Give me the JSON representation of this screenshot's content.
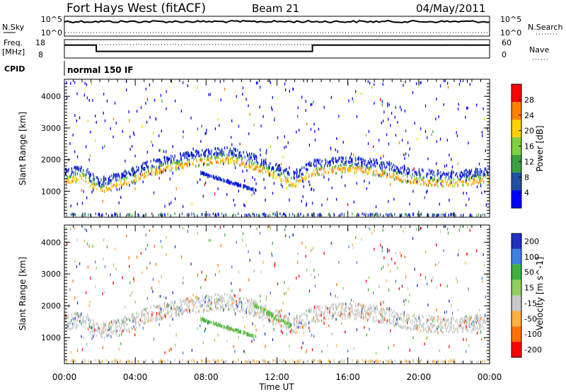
{
  "header": {
    "station": "Fort Hays West (fitACF)",
    "beam": "Beam 21",
    "date": "04/May/2011"
  },
  "strips": {
    "nsky": {
      "label": "N.Sky",
      "tick_top": "10^5",
      "tick_bottom": "10^0",
      "right_label": "N.Search",
      "right_tick_top": "10^5",
      "right_tick_bottom": "10^0"
    },
    "freq": {
      "label_line1": "Freq.",
      "label_line2": "[MHz]",
      "tick_top": "18",
      "tick_bottom": "8",
      "right_label": "Nave",
      "right_tick_top": "60",
      "right_tick_bottom": "0",
      "freq_segments_mhz": [
        {
          "from_h": 0.0,
          "to_h": 1.8,
          "value": 15.0
        },
        {
          "from_h": 1.8,
          "to_h": 14.0,
          "value": 11.6
        },
        {
          "from_h": 14.0,
          "to_h": 24.0,
          "value": 15.0
        }
      ]
    },
    "cpid": {
      "label": "CPID",
      "program": "normal 150 IF"
    }
  },
  "chart_data": [
    {
      "type": "heatmap",
      "name": "power",
      "ylabel": "Slant Range [km]",
      "yticks": [
        "1000",
        "2000",
        "3000",
        "4000"
      ],
      "ylim_km": [
        180,
        4540
      ],
      "colorbar_label": "Power [dB]",
      "colorbar_ticks": [
        "4",
        "8",
        "12",
        "16",
        "20",
        "24",
        "28"
      ],
      "colorbar_colors": [
        "#0000ff",
        "#2050a0",
        "#3aa040",
        "#7fd040",
        "#ffd000",
        "#ff8000",
        "#ff0000"
      ],
      "band_km": [
        [
          0,
          1450
        ],
        [
          1,
          1580
        ],
        [
          2,
          1150
        ],
        [
          3,
          1350
        ],
        [
          4,
          1550
        ],
        [
          5,
          1750
        ],
        [
          6,
          1900
        ],
        [
          7,
          2000
        ],
        [
          8,
          2080
        ],
        [
          9,
          2150
        ],
        [
          10,
          2050
        ],
        [
          11,
          1850
        ],
        [
          12,
          1600
        ],
        [
          13,
          1350
        ],
        [
          14,
          1750
        ],
        [
          15,
          1800
        ],
        [
          16,
          1850
        ],
        [
          17,
          1800
        ],
        [
          18,
          1700
        ],
        [
          19,
          1550
        ],
        [
          20,
          1450
        ],
        [
          21,
          1400
        ],
        [
          22,
          1400
        ],
        [
          23,
          1450
        ],
        [
          24,
          1500
        ]
      ]
    },
    {
      "type": "heatmap",
      "name": "velocity",
      "ylabel": "Slant Range [km]",
      "yticks": [
        "1000",
        "2000",
        "3000",
        "4000"
      ],
      "ylim_km": [
        180,
        4540
      ],
      "colorbar_label": "Velocity [m s^-1]",
      "colorbar_ticks": [
        "200",
        "100",
        "50",
        "15",
        "-15",
        "-50",
        "-100",
        "-200"
      ],
      "colorbar_colors": [
        "#2030c0",
        "#4080e0",
        "#40b040",
        "#90d060",
        "#c8c8c8",
        "#ffb040",
        "#ff7000",
        "#ff0000"
      ],
      "xlabel": "Time UT",
      "xticks": [
        "00:00",
        "04:00",
        "08:00",
        "12:00",
        "16:00",
        "20:00",
        "00:00"
      ],
      "xlim_h": [
        0,
        24
      ]
    }
  ]
}
